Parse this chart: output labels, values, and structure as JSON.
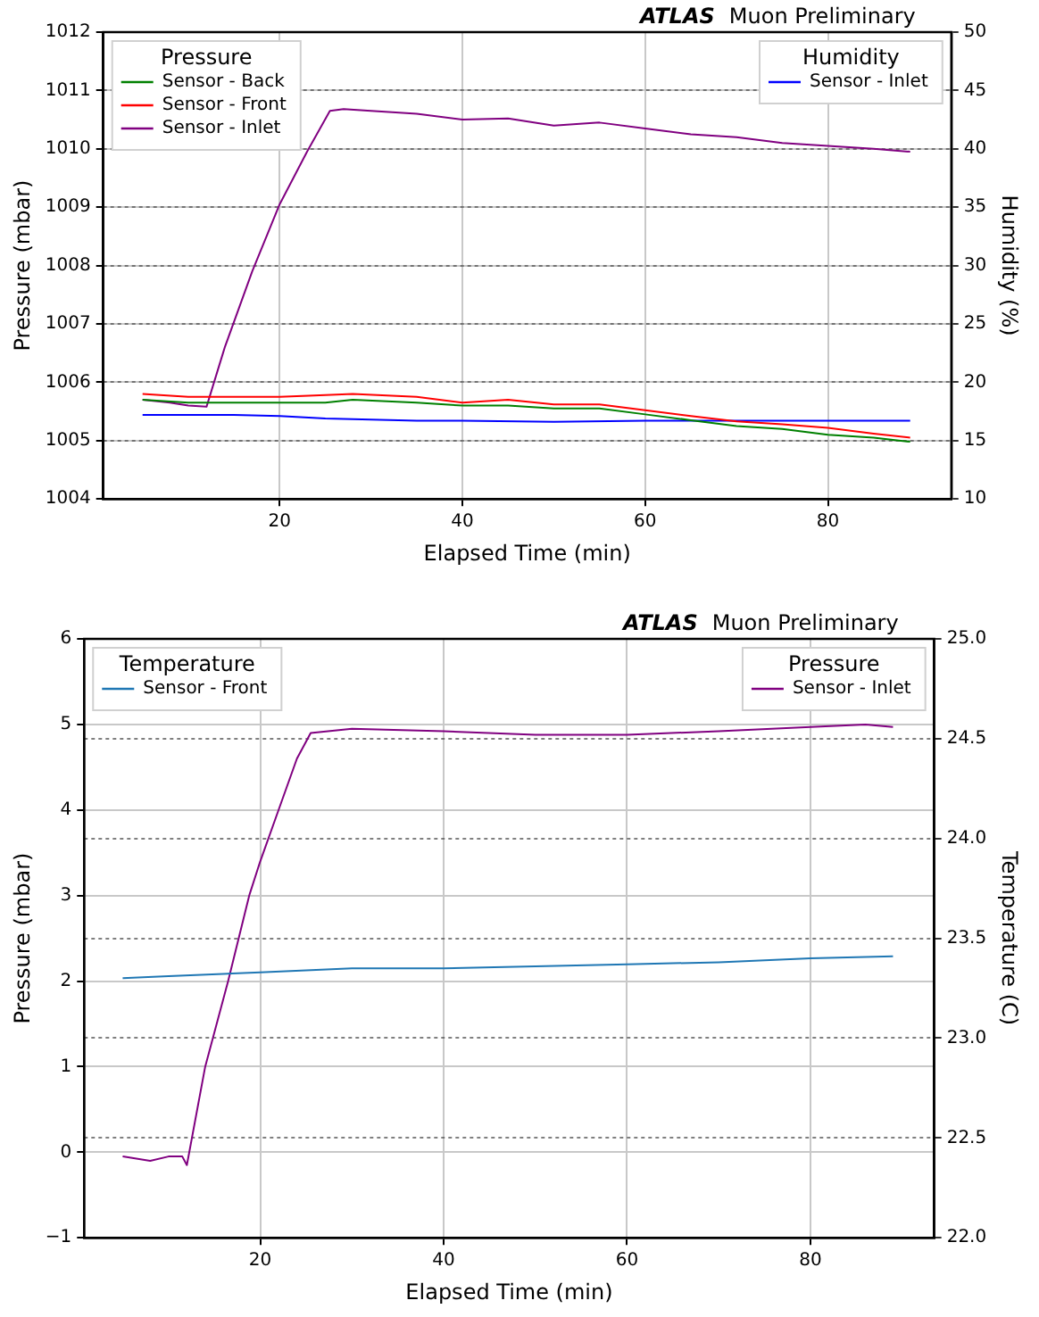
{
  "chart_data": [
    {
      "type": "line",
      "title": "ATLAS",
      "subtitle": "Muon Preliminary",
      "xlabel": "Elapsed Time (min)",
      "ylabel": "Pressure (mbar)",
      "y2label": "Humidity (%)",
      "legend_title": "Pressure",
      "annotations": [
        "Humidity"
      ],
      "xlim": [
        0.7,
        93.5
      ],
      "xticks": [
        20,
        40,
        60,
        80
      ],
      "ylim": [
        1004,
        1012
      ],
      "yticks": [
        1004,
        1005,
        1006,
        1007,
        1008,
        1009,
        1010,
        1011,
        1012
      ],
      "y2lim": [
        10,
        50
      ],
      "y2ticks": [
        10,
        15,
        20,
        25,
        30,
        35,
        40,
        45,
        50
      ],
      "grid": true,
      "legend": "top left",
      "marker": "none",
      "line_style": "solid",
      "series": [
        {
          "name": "Sensor - Back",
          "color": "#008000",
          "x": [
            5,
            10,
            15,
            20,
            25,
            28,
            35,
            40,
            45,
            50,
            55,
            60,
            65,
            70,
            75,
            80,
            85,
            89
          ],
          "values": [
            1005.7,
            1005.65,
            1005.65,
            1005.65,
            1005.65,
            1005.7,
            1005.65,
            1005.6,
            1005.6,
            1005.55,
            1005.55,
            1005.45,
            1005.35,
            1005.25,
            1005.2,
            1005.1,
            1005.05,
            1004.98
          ]
        },
        {
          "name": "Sensor - Front",
          "color": "#ff0000",
          "x": [
            5,
            10,
            15,
            20,
            25,
            28,
            35,
            40,
            45,
            50,
            55,
            60,
            65,
            70,
            75,
            80,
            85,
            89
          ],
          "values": [
            1005.8,
            1005.75,
            1005.75,
            1005.75,
            1005.78,
            1005.8,
            1005.75,
            1005.65,
            1005.7,
            1005.62,
            1005.62,
            1005.52,
            1005.42,
            1005.33,
            1005.28,
            1005.22,
            1005.12,
            1005.05
          ]
        },
        {
          "name": "Sensor - Inlet",
          "color": "#800080",
          "x": [
            5,
            8,
            10,
            12,
            14,
            17,
            20,
            23,
            25.5,
            27,
            30,
            35,
            40,
            45,
            50,
            55,
            60,
            65,
            70,
            75,
            80,
            85,
            89
          ],
          "values": [
            1005.7,
            1005.65,
            1005.6,
            1005.58,
            1006.6,
            1007.9,
            1009.05,
            1009.95,
            1010.65,
            1010.68,
            1010.65,
            1010.6,
            1010.5,
            1010.52,
            1010.4,
            1010.45,
            1010.35,
            1010.25,
            1010.2,
            1010.1,
            1010.05,
            1010.0,
            1009.95
          ]
        },
        {
          "name": "Sensor - Inlet",
          "color": "#0000ff",
          "axis": "y2",
          "x": [
            5,
            10,
            15,
            20,
            25,
            30,
            35,
            40,
            50,
            60,
            70,
            80,
            89
          ],
          "values": [
            17.2,
            17.2,
            17.2,
            17.1,
            16.9,
            16.8,
            16.7,
            16.7,
            16.6,
            16.7,
            16.7,
            16.7,
            16.7
          ]
        }
      ]
    },
    {
      "type": "line",
      "title": "ATLAS",
      "subtitle": "Muon Preliminary",
      "xlabel": "Elapsed Time (min)",
      "ylabel": "Pressure (mbar)",
      "y2label": "Temperature (C)",
      "legend_title": "Temperature",
      "annotations": [
        "Pressure"
      ],
      "xlim": [
        0.8,
        93.5
      ],
      "xticks": [
        20,
        40,
        60,
        80
      ],
      "ylim": [
        -1,
        6
      ],
      "yticks": [
        {
          "value": -1,
          "label": "−1"
        },
        0,
        1,
        2,
        3,
        4,
        5,
        6
      ],
      "y2lim": [
        22,
        25
      ],
      "y2ticks": [
        {
          "value": 22,
          "label": "22.0"
        },
        22.5,
        {
          "value": 23,
          "label": "23.0"
        },
        23.5,
        {
          "value": 24,
          "label": "24.0"
        },
        24.5,
        {
          "value": 25,
          "label": "25.0"
        }
      ],
      "grid": true,
      "legend": "top left",
      "marker": "none",
      "line_style": "solid",
      "series": [
        {
          "name": "Sensor - Front",
          "color": "#1f77b4",
          "axis": "y2",
          "x": [
            5,
            10,
            20,
            30,
            40,
            50,
            60,
            70,
            80,
            89
          ],
          "values": [
            23.3,
            23.31,
            23.33,
            23.35,
            23.35,
            23.36,
            23.37,
            23.38,
            23.4,
            23.41
          ]
        },
        {
          "name": "Sensor - Inlet",
          "color": "#800080",
          "x": [
            5,
            8,
            10,
            11.5,
            12,
            14,
            16.5,
            18.8,
            20,
            22,
            24,
            25.5,
            30,
            40,
            50,
            60,
            70,
            80,
            86,
            89
          ],
          "values": [
            -0.05,
            -0.1,
            -0.05,
            -0.05,
            -0.15,
            1,
            2,
            3,
            3.4,
            4.0,
            4.6,
            4.9,
            4.95,
            4.92,
            4.88,
            4.88,
            4.92,
            4.97,
            5.0,
            4.97
          ]
        }
      ]
    }
  ]
}
